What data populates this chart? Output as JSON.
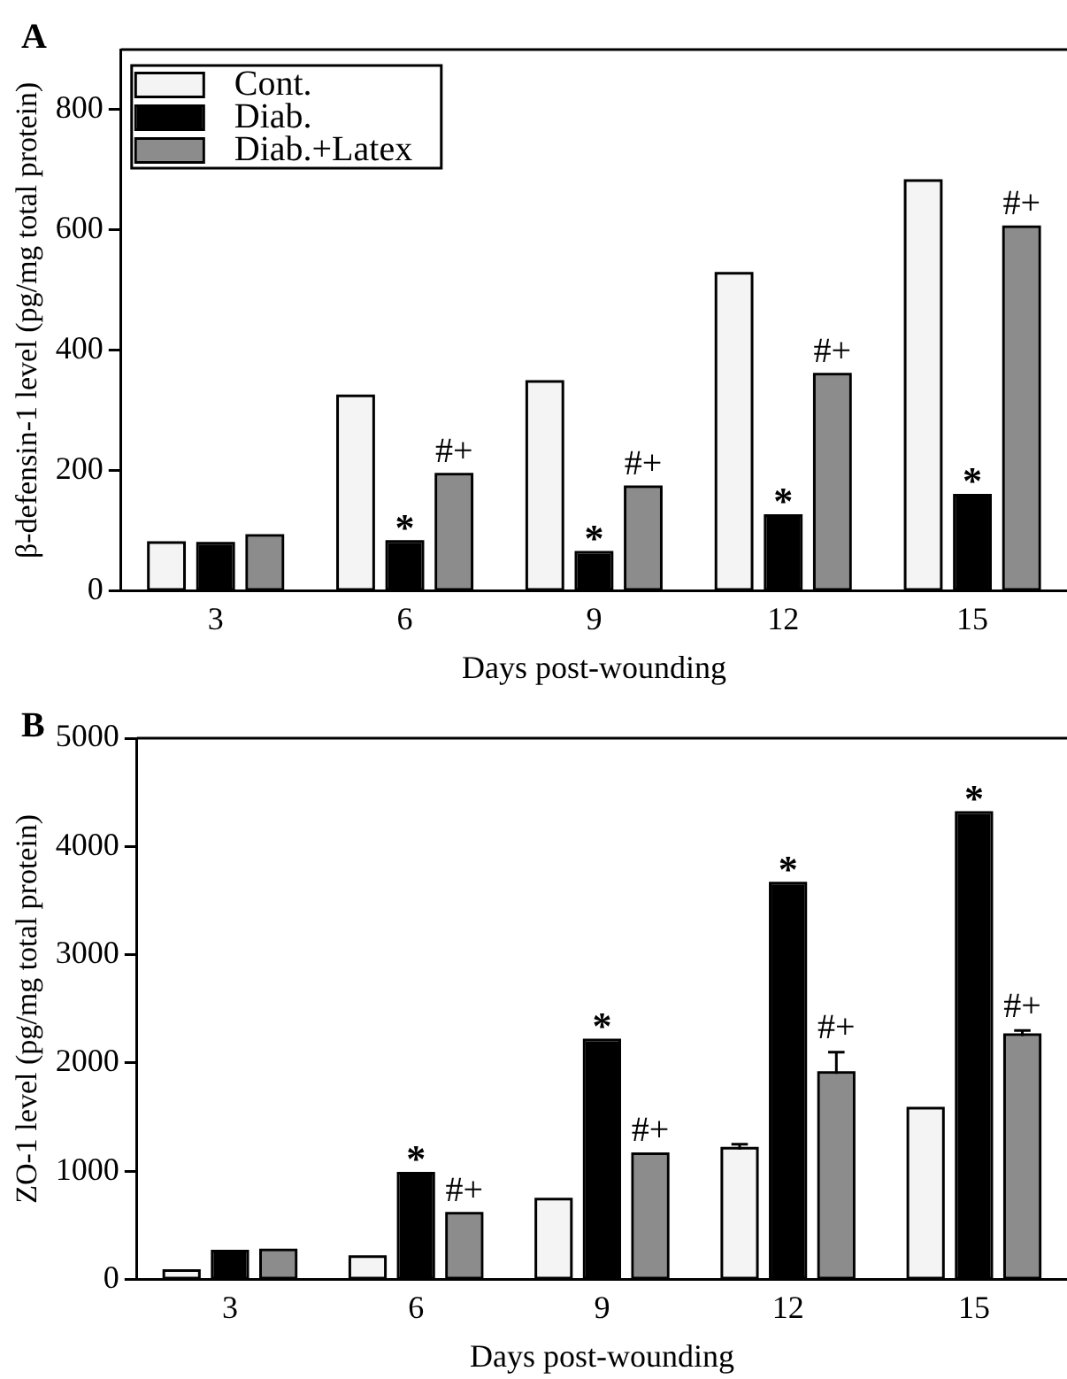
{
  "chart_data": [
    {
      "type": "bar",
      "title": "A",
      "xlabel": "Days post-wounding",
      "ylabel": "β-defensin-1 level (pg/mg total protein)",
      "categories": [
        "3",
        "6",
        "9",
        "12",
        "15"
      ],
      "series": [
        {
          "name": "Cont.",
          "color": "#f4f4f4",
          "values": [
            78,
            322,
            346,
            526,
            680
          ]
        },
        {
          "name": "Diab.",
          "color": "#000000",
          "values": [
            77,
            80,
            62,
            123,
            157
          ],
          "value_labels": [
            null,
            "*",
            "*",
            "*",
            "*"
          ]
        },
        {
          "name": "Diab.+Latex",
          "color": "#8c8c8c",
          "values": [
            90,
            192,
            171,
            358,
            603
          ],
          "value_labels": [
            null,
            "#+",
            "#+",
            "#+",
            "#+"
          ]
        }
      ],
      "ylim": [
        0,
        900
      ],
      "yticks": [
        0,
        200,
        400,
        600,
        800
      ],
      "legend": "top left"
    },
    {
      "type": "bar",
      "title": "B",
      "xlabel": "Days post-wounding",
      "ylabel": "ZO-1 level (pg/mg total protein)",
      "categories": [
        "3",
        "6",
        "9",
        "12",
        "15"
      ],
      "series": [
        {
          "color": "#f4f4f4",
          "values": [
            70,
            200,
            730,
            1200,
            1570
          ],
          "errors": [
            null,
            null,
            null,
            50,
            null
          ]
        },
        {
          "color": "#000000",
          "values": [
            250,
            970,
            2200,
            3650,
            4300
          ],
          "value_labels": [
            null,
            "*",
            "*",
            "*",
            "*"
          ]
        },
        {
          "color": "#8c8c8c",
          "values": [
            260,
            600,
            1150,
            1900,
            2250
          ],
          "errors": [
            null,
            null,
            null,
            200,
            50
          ],
          "value_labels": [
            null,
            "#+",
            "#+",
            "#+",
            "#+"
          ]
        }
      ],
      "ylim": [
        0,
        5000
      ],
      "yticks": [
        0,
        1000,
        2000,
        3000,
        4000,
        5000
      ]
    }
  ]
}
